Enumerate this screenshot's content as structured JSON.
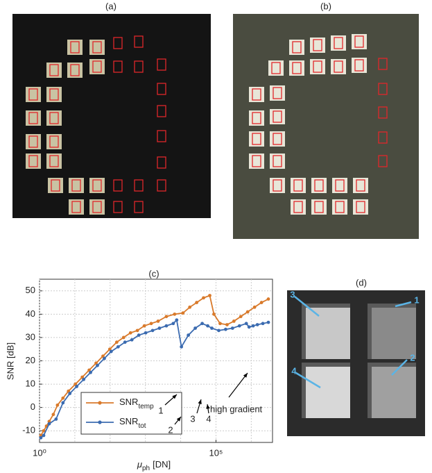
{
  "panels": {
    "a": "(a)",
    "b": "(b)",
    "c": "(c)",
    "d": "(d)"
  },
  "chart_data": {
    "type": "line",
    "ylabel": "SNR [dB]",
    "xlabel": {
      "symbol": "μ",
      "sub": "ph",
      "unit": "[DN]"
    },
    "log_x": true,
    "grid": true,
    "legend": "lower-left",
    "xlim": [
      1,
      4000000
    ],
    "xticks": [
      {
        "value": 1,
        "label": "10⁰"
      },
      {
        "value": 100000,
        "label": "10⁵"
      }
    ],
    "xgrid": [
      10,
      100,
      1000,
      10000,
      1000000
    ],
    "ylim": [
      -15,
      55
    ],
    "yticks": [
      -10,
      0,
      10,
      20,
      30,
      40,
      50
    ],
    "series": [
      {
        "name": "SNR",
        "name_sub": "temp",
        "color": "#d97a2b",
        "x": [
          1.09,
          1.31,
          1.57,
          1.88,
          2.46,
          3.22,
          4.61,
          6.61,
          10.4,
          16.3,
          25.5,
          40,
          62.7,
          98,
          154,
          241,
          379,
          593,
          931,
          1460,
          2290,
          3930,
          6730,
          11600,
          18100,
          28400,
          44500,
          66700,
          87400,
          131000,
          206000,
          322000,
          505000,
          791000,
          1240000,
          1950000,
          3050000
        ],
        "values": [
          -12,
          -10,
          -8,
          -6,
          -3,
          1,
          4,
          7,
          10,
          13,
          16,
          19,
          22,
          25,
          28,
          30,
          32,
          33,
          35,
          36,
          37,
          39,
          40,
          40.5,
          43,
          45,
          47,
          48,
          40,
          36,
          35.5,
          37,
          39,
          41,
          43,
          45,
          46.5
        ]
      },
      {
        "name": "SNR",
        "name_sub": "tot",
        "color": "#3b6bb0",
        "x": [
          1.09,
          1.31,
          1.88,
          2.94,
          4.61,
          7.23,
          11.3,
          17.8,
          27.9,
          43.7,
          68.5,
          107,
          169,
          264,
          414,
          650,
          1020,
          1600,
          2500,
          3930,
          6150,
          7710,
          10500,
          16500,
          25900,
          40700,
          58300,
          76300,
          120000,
          188000,
          294000,
          462000,
          723000,
          866000,
          1130000,
          1490000,
          2130000,
          3050000
        ],
        "values": [
          -13,
          -12,
          -7,
          -5,
          2,
          6,
          9,
          12,
          15,
          18,
          21,
          24,
          26,
          28,
          29,
          31,
          32,
          33,
          34,
          35,
          36,
          37.5,
          26,
          31,
          34,
          36,
          35,
          34,
          33,
          33.5,
          34,
          35,
          36,
          34.5,
          35,
          35.5,
          36,
          36.5
        ]
      }
    ],
    "annotations": [
      "1",
      "2",
      "3",
      "4",
      "high gradient"
    ]
  },
  "image_d_labels": [
    "1",
    "2",
    "3",
    "4"
  ]
}
